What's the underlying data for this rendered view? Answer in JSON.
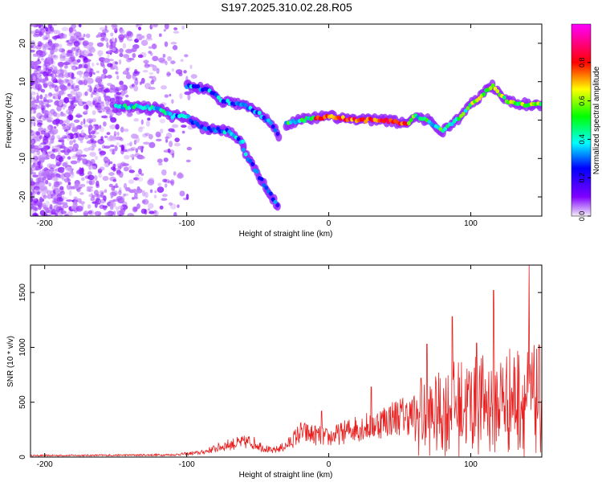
{
  "title": "S197.2025.310.02.28.R05",
  "chart_data": [
    {
      "type": "heatmap",
      "xlabel": "Height of straight line (km)",
      "ylabel": "Frequency (Hz)",
      "xlim": [
        -210,
        150
      ],
      "ylim": [
        -25,
        25
      ],
      "xticks": [
        -200,
        -100,
        0,
        100
      ],
      "yticks": [
        -20,
        -10,
        0,
        10,
        20
      ],
      "colorbar": {
        "label": "Normalized spectral amplitude",
        "ticks": [
          0.0,
          0.2,
          0.4,
          0.6,
          0.8
        ],
        "range": [
          0,
          1
        ],
        "colors": [
          "#f4eef8",
          "#8000ff",
          "#0000ff",
          "#00ffff",
          "#00ff00",
          "#ffff00",
          "#ff0000",
          "#ff00ff"
        ]
      },
      "ridges": [
        {
          "name": "",
          "points": [
            [
              -150,
              3.5
            ],
            [
              -130,
              3.5
            ],
            [
              -120,
              3
            ],
            [
              -110,
              1
            ],
            [
              -100,
              1
            ],
            [
              -90,
              -2
            ],
            [
              -70,
              -3
            ],
            [
              -60,
              -6
            ]
          ]
        },
        {
          "name": "",
          "points": [
            [
              -100,
              9
            ],
            [
              -85,
              8
            ],
            [
              -75,
              5
            ],
            [
              -60,
              4
            ],
            [
              -50,
              2
            ],
            [
              -40,
              -1
            ],
            [
              -35,
              -4
            ]
          ]
        },
        {
          "name": "",
          "points": [
            [
              -60,
              -8
            ],
            [
              -50,
              -14
            ],
            [
              -40,
              -20
            ],
            [
              -35,
              -23
            ]
          ]
        },
        {
          "name": "",
          "points": [
            [
              -30,
              -1
            ],
            [
              -20,
              0
            ],
            [
              0,
              1
            ],
            [
              20,
              0
            ],
            [
              40,
              0
            ],
            [
              55,
              -1
            ],
            [
              60,
              1
            ],
            [
              70,
              0
            ],
            [
              80,
              -3
            ],
            [
              90,
              0
            ],
            [
              100,
              4
            ],
            [
              115,
              9
            ],
            [
              125,
              5
            ],
            [
              140,
              4
            ],
            [
              150,
              4
            ]
          ]
        }
      ]
    },
    {
      "type": "line",
      "xlabel": "Height of straight line (km)",
      "ylabel": "SNR (10 * v/v)",
      "xlim": [
        -210,
        150
      ],
      "ylim": [
        0,
        1750
      ],
      "xticks": [
        -200,
        -100,
        0,
        100
      ],
      "yticks": [
        0,
        500,
        1000,
        1500
      ],
      "color": "#e82020",
      "envelope": [
        [
          -210,
          20
        ],
        [
          -150,
          25
        ],
        [
          -110,
          30
        ],
        [
          -90,
          60
        ],
        [
          -70,
          170
        ],
        [
          -55,
          210
        ],
        [
          -40,
          80
        ],
        [
          -30,
          150
        ],
        [
          -20,
          330
        ],
        [
          -10,
          300
        ],
        [
          0,
          260
        ],
        [
          10,
          330
        ],
        [
          20,
          400
        ],
        [
          30,
          420
        ],
        [
          40,
          500
        ],
        [
          50,
          560
        ],
        [
          60,
          560
        ],
        [
          70,
          600
        ],
        [
          80,
          700
        ],
        [
          90,
          780
        ],
        [
          100,
          800
        ],
        [
          110,
          820
        ],
        [
          120,
          850
        ],
        [
          130,
          900
        ],
        [
          140,
          880
        ],
        [
          150,
          900
        ]
      ],
      "peaks": [
        [
          -5,
          420
        ],
        [
          30,
          640
        ],
        [
          65,
          720
        ],
        [
          69,
          1030
        ],
        [
          87,
          1280
        ],
        [
          104,
          1040
        ],
        [
          116,
          1520
        ],
        [
          141,
          1750
        ]
      ]
    }
  ]
}
